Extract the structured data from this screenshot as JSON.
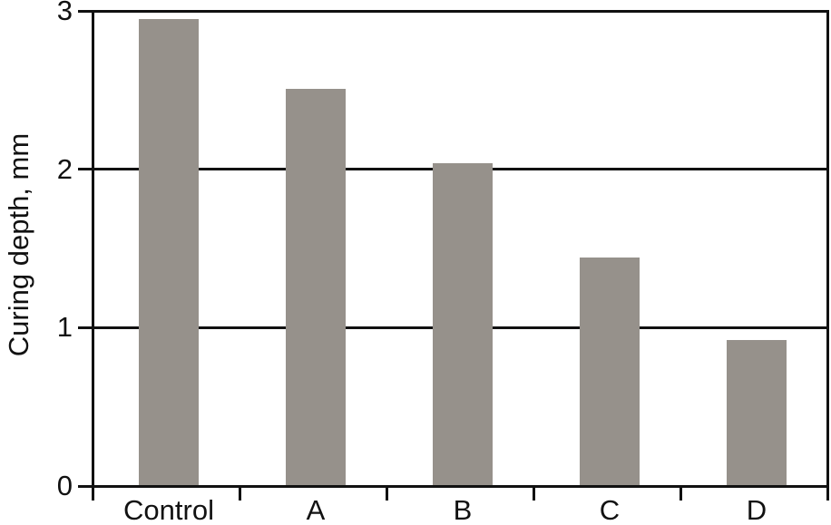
{
  "chart_data": {
    "type": "bar",
    "title": "",
    "categories": [
      "Control",
      "A",
      "B",
      "C",
      "D"
    ],
    "values": [
      2.95,
      2.51,
      2.04,
      1.44,
      0.92
    ],
    "series_name": "Curing depth",
    "xlabel": "",
    "ylabel": "Curing depth, mm",
    "ylim": [
      0,
      3
    ],
    "yticks": [
      0,
      1,
      2,
      3
    ],
    "grid": "horizontal gridlines at interior y ticks, drawn behind bars",
    "legend": "none",
    "colors": {
      "bar_fill": "#96918B",
      "axis_line": "#111111",
      "text": "#111111",
      "background": "#ffffff"
    }
  }
}
